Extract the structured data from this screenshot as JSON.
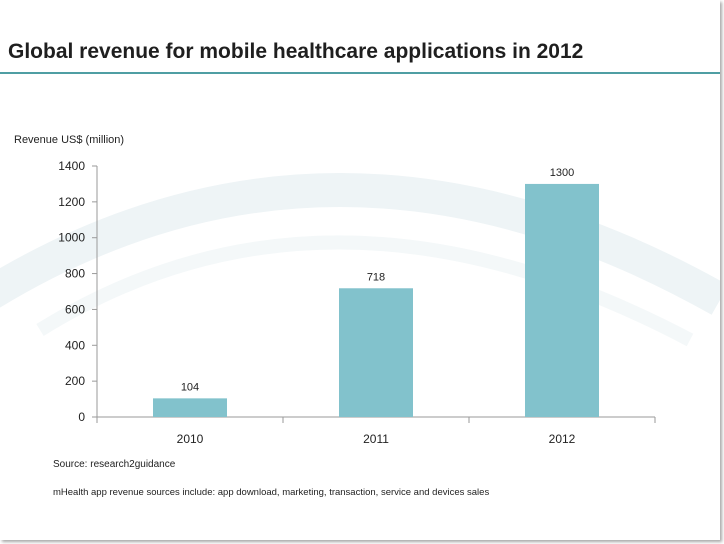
{
  "title": "Global revenue for mobile healthcare applications in 2012",
  "source": "Source: research2guidance",
  "note": "mHealth app revenue sources include: app download, marketing, transaction, service and devices sales",
  "colors": {
    "bar": "#82c2cc",
    "rule": "#4f9ea3",
    "swoosh": "#eef4f6"
  },
  "chart_data": {
    "type": "bar",
    "title": "Global revenue for mobile healthcare applications in 2012",
    "categories": [
      "2010",
      "2011",
      "2012"
    ],
    "values": [
      104,
      718,
      1300
    ],
    "data_labels": [
      "104",
      "718",
      "1300"
    ],
    "xlabel": "",
    "ylabel": "Revenue US$ (million)",
    "ylim": [
      0,
      1400
    ],
    "yticks": [
      0,
      200,
      400,
      600,
      800,
      1000,
      1200,
      1400
    ],
    "grid": false,
    "legend": "none"
  }
}
